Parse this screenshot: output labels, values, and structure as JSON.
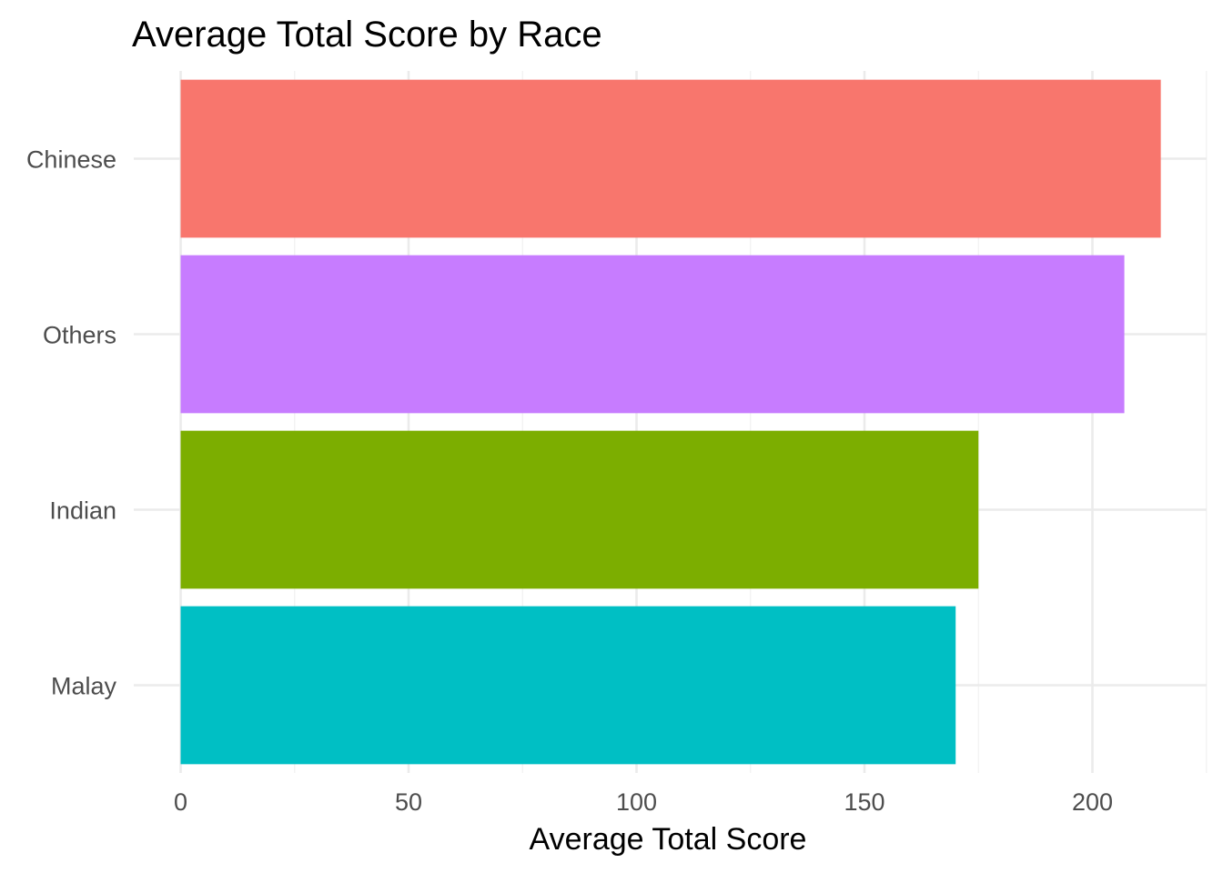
{
  "chart_data": {
    "type": "bar",
    "orientation": "horizontal",
    "title": "Average Total Score by Race",
    "xlabel": "Average Total Score",
    "ylabel": "",
    "categories": [
      "Malay",
      "Indian",
      "Others",
      "Chinese"
    ],
    "values": [
      170,
      175,
      207,
      215
    ],
    "colors": [
      "#00BFC4",
      "#7CAE00",
      "#C77CFF",
      "#F8766D"
    ],
    "xlim": [
      0,
      225
    ],
    "xticks": [
      0,
      50,
      100,
      150,
      200
    ],
    "grid": true,
    "legend": "none"
  }
}
